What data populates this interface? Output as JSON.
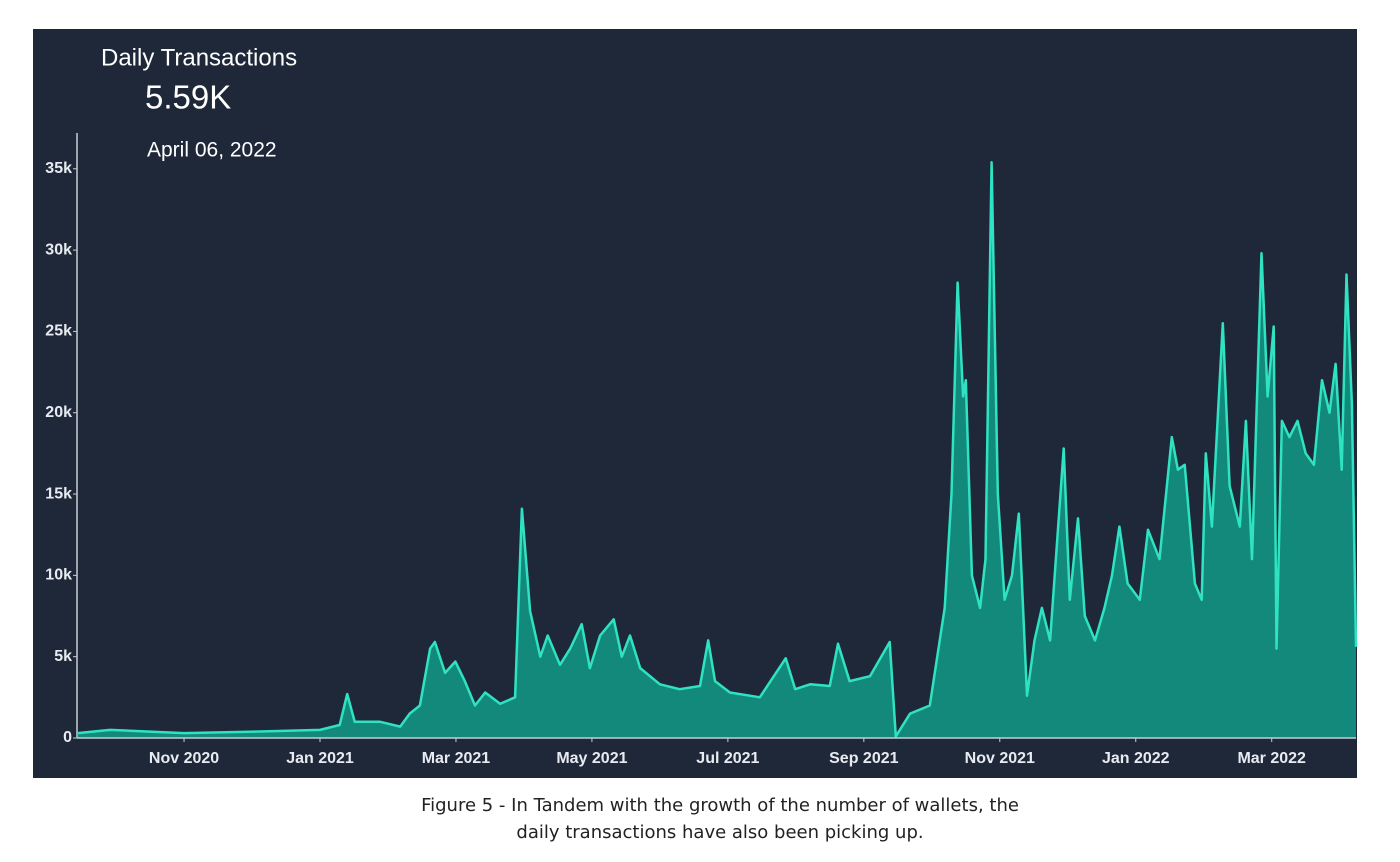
{
  "chart_data": {
    "type": "area",
    "title": "Daily Transactions",
    "headline": "5.59K",
    "date": "April 06, 2022",
    "x": [
      -1.56,
      -1.09,
      0,
      1.12,
      2,
      2.29,
      2.4,
      2.51,
      2.88,
      3.18,
      3.32,
      3.47,
      3.62,
      3.69,
      3.84,
      3.99,
      4.13,
      4.28,
      4.43,
      4.65,
      4.87,
      4.97,
      5.09,
      5.24,
      5.35,
      5.53,
      5.68,
      5.85,
      5.97,
      6.12,
      6.32,
      6.44,
      6.56,
      6.71,
      7,
      7.29,
      7.59,
      7.71,
      7.81,
      8.03,
      8.47,
      8.85,
      8.99,
      9.21,
      9.5,
      9.62,
      9.79,
      10.09,
      10.38,
      10.47,
      10.68,
      10.97,
      11.19,
      11.29,
      11.38,
      11.46,
      11.5,
      11.59,
      11.71,
      11.79,
      11.88,
      11.97,
      12.07,
      12.18,
      12.28,
      12.4,
      12.51,
      12.62,
      12.74,
      12.94,
      13.03,
      13.15,
      13.25,
      13.4,
      13.54,
      13.65,
      13.76,
      13.88,
      14.06,
      14.18,
      14.35,
      14.53,
      14.62,
      14.72,
      14.87,
      14.97,
      15.03,
      15.12,
      15.28,
      15.38,
      15.53,
      15.62,
      15.71,
      15.85,
      15.94,
      16.03,
      16.07,
      16.15,
      16.26,
      16.38,
      16.5,
      16.62,
      16.74,
      16.85,
      16.94,
      17.03,
      17.1,
      17.18,
      17.24
    ],
    "values": [
      300,
      500,
      300,
      400,
      500,
      800,
      2700,
      1000,
      1000,
      700,
      1500,
      2000,
      5500,
      5900,
      4000,
      4700,
      3500,
      2000,
      2800,
      2100,
      2500,
      14100,
      7800,
      5000,
      6300,
      4500,
      5500,
      7000,
      4300,
      6300,
      7300,
      5000,
      6300,
      4300,
      3300,
      3000,
      3200,
      6000,
      3500,
      2800,
      2500,
      4900,
      3000,
      3300,
      3200,
      5800,
      3500,
      3800,
      5900,
      100,
      1500,
      2000,
      8000,
      15000,
      28000,
      21000,
      22000,
      10000,
      8000,
      11000,
      35400,
      15000,
      8500,
      10000,
      13800,
      2600,
      6000,
      8000,
      6000,
      17800,
      8500,
      13500,
      7500,
      6000,
      8000,
      10000,
      13000,
      9500,
      8500,
      12800,
      11000,
      18500,
      16500,
      16800,
      9500,
      8500,
      17500,
      13000,
      25500,
      15500,
      13000,
      19500,
      11000,
      29800,
      21000,
      25300,
      5500,
      19500,
      18500,
      19500,
      17500,
      16800,
      22000,
      20000,
      23000,
      16500,
      28500,
      20500,
      5600
    ],
    "line_color": "#2fe3c2",
    "fill_color": "#12897a",
    "xlim": [
      -1.56,
      17.24
    ],
    "xticks": [
      {
        "value": 0,
        "label": "Nov 2020"
      },
      {
        "value": 2,
        "label": "Jan 2021"
      },
      {
        "value": 4,
        "label": "Mar 2021"
      },
      {
        "value": 6,
        "label": "May 2021"
      },
      {
        "value": 8,
        "label": "Jul 2021"
      },
      {
        "value": 10,
        "label": "Sep 2021"
      },
      {
        "value": 12,
        "label": "Nov 2021"
      },
      {
        "value": 14,
        "label": "Jan 2022"
      },
      {
        "value": 16,
        "label": "Mar 2022"
      }
    ],
    "ylim": [
      0,
      37200
    ],
    "yticks": [
      0,
      {
        "value": 5000,
        "label": "5k"
      },
      {
        "value": 10000,
        "label": "10k"
      },
      {
        "value": 15000,
        "label": "15k"
      },
      {
        "value": 20000,
        "label": "20k"
      },
      {
        "value": 25000,
        "label": "25k"
      },
      {
        "value": 30000,
        "label": "30k"
      },
      {
        "value": 35000,
        "label": "35k"
      }
    ]
  },
  "caption": [
    "Figure 5 - In Tandem with the growth of the number of wallets, the",
    "daily transactions have also been picking up."
  ]
}
